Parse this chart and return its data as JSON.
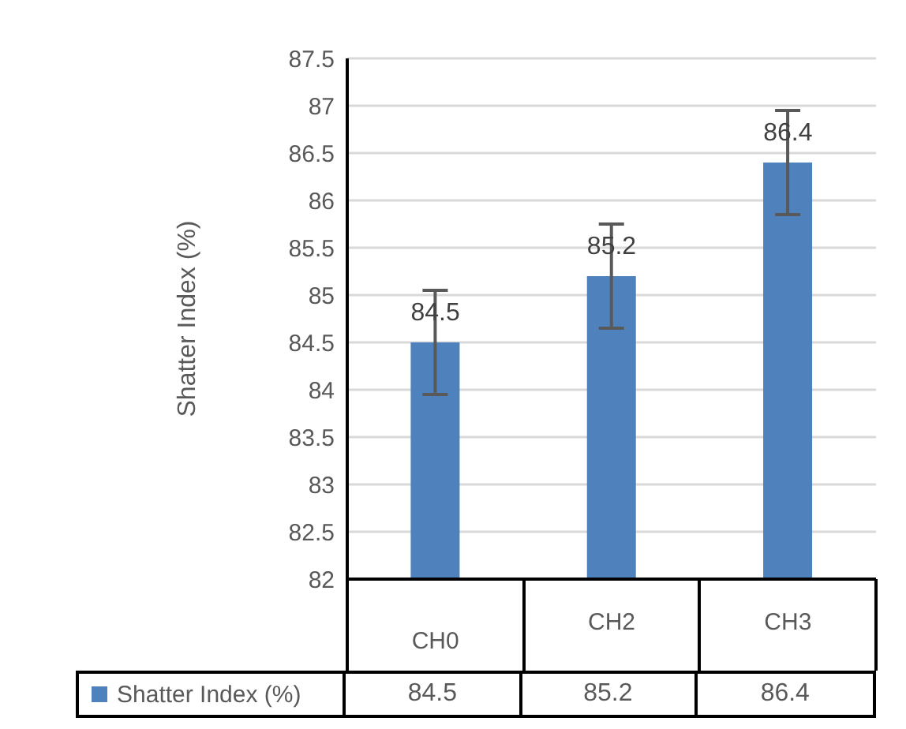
{
  "chart_data": {
    "type": "bar",
    "ylabel": "Shatter Index (%)",
    "categories": [
      "CH0",
      "CH2",
      "CH3"
    ],
    "series": [
      {
        "name": "Shatter Index (%)",
        "color": "#4f81bd",
        "values": [
          84.5,
          85.2,
          86.4
        ],
        "errors": [
          0.55,
          0.55,
          0.55
        ]
      }
    ],
    "ylim": [
      82,
      87.5
    ],
    "yticks": [
      82,
      82.5,
      83,
      83.5,
      84,
      84.5,
      85,
      85.5,
      86,
      86.5,
      87,
      87.5
    ],
    "annotations": [
      {
        "text": "84.5",
        "x": "CH0",
        "y": 84.5
      },
      {
        "text": "85.2",
        "x": "CH2",
        "y": 85.2
      },
      {
        "text": "86.4",
        "x": "CH3",
        "y": 86.4
      }
    ],
    "grid": "y",
    "legend": "bottom",
    "data_labels": true
  }
}
